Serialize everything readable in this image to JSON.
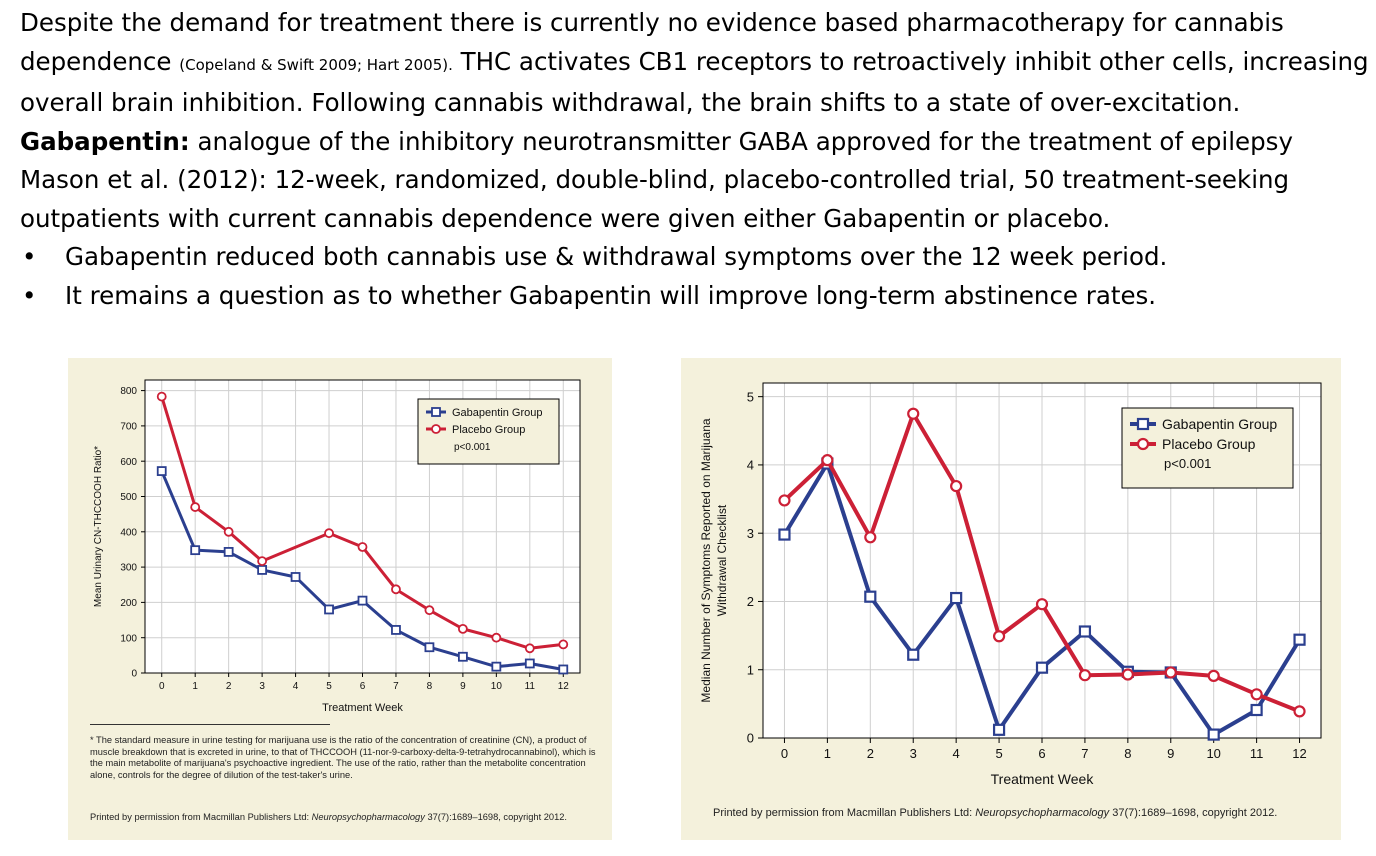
{
  "slide": {
    "para1_main": "Despite the demand for treatment there is currently no evidence based pharmacotherapy for cannabis dependence",
    "para1_cite": "(Copeland & Swift 2009; Hart 2005).",
    "para1_rest": " THC activates CB1 receptors to retroactively inhibit other cells, increasing overall brain inhibition.  Following cannabis withdrawal, the brain shifts to a state of over-excitation.",
    "gaba_label": "Gabapentin:",
    "gaba_desc": "  analogue of the inhibitory neurotransmitter GABA approved for the treatment of epilepsy",
    "mason": "Mason et al. (2012): 12-week, randomized, double-blind, placebo-controlled trial, 50 treatment-seeking outpatients with current cannabis dependence were given either Gabapentin or placebo.",
    "bullet_symbol": "•",
    "bullets": [
      "Gabapentin reduced both cannabis use & withdrawal symptoms over the 12 week period.",
      "It remains a question as to whether Gabapentin will improve long-term abstinence rates."
    ]
  },
  "colors": {
    "gabapentin": "#2b3f8f",
    "placebo": "#cc2036",
    "panel_bg": "#f4f1dc",
    "plot_bg": "#ffffff",
    "grid": "#cfcfcf"
  },
  "chart_data": [
    {
      "type": "line",
      "xlabel": "Treatment Week",
      "ylabel": "Mean Urinary CN-THCCOOH Ratio*",
      "x": [
        0,
        1,
        2,
        3,
        4,
        5,
        6,
        7,
        8,
        9,
        10,
        11,
        12
      ],
      "xticks": [
        "0",
        "1",
        "2",
        "3",
        "4",
        "5",
        "6",
        "7",
        "8",
        "9",
        "10",
        "11",
        "12"
      ],
      "yticks": [
        "0",
        "100",
        "200",
        "300",
        "400",
        "500",
        "600",
        "700",
        "800"
      ],
      "ylim": [
        0,
        830
      ],
      "grid": true,
      "legend_position": "top-right",
      "annotation": "p<0.001",
      "series": [
        {
          "name": "Gabapentin Group",
          "marker": "square",
          "values": [
            572,
            348,
            343,
            292,
            272,
            180,
            205,
            122,
            73,
            46,
            18,
            27,
            10
          ]
        },
        {
          "name": "Placebo Group",
          "marker": "circle",
          "values": [
            783,
            470,
            400,
            317,
            null,
            396,
            357,
            237,
            178,
            125,
            100,
            70,
            81
          ]
        }
      ],
      "footnote": "* The standard measure in urine testing for marijuana use is the ratio of the concentration of creatinine (CN), a product of muscle breakdown that is excreted in urine, to that of THCCOOH (11-nor-9-carboxy-delta-9-tetrahydrocannabinol), which is the main metabolite of marijuana's psychoactive ingredient. The use of the ratio, rather than the metabolite concentration alone, controls for the degree of dilution of the test-taker's urine.",
      "permission_prefix": "Printed by permission from Macmillan Publishers Ltd: ",
      "permission_journal": "Neuropsychopharmacology",
      "permission_suffix": " 37(7):1689–1698, copyright 2012."
    },
    {
      "type": "line",
      "xlabel": "Treatment Week",
      "ylabel": "Median Number of Symptoms Reported on Marijuana Withdrawal Checklist",
      "ylabel_lines": [
        "Median Number of Symptoms Reported on Marijuana",
        "Withdrawal Checklist"
      ],
      "x": [
        0,
        1,
        2,
        3,
        4,
        5,
        6,
        7,
        8,
        9,
        10,
        11,
        12
      ],
      "xticks": [
        "0",
        "1",
        "2",
        "3",
        "4",
        "5",
        "6",
        "7",
        "8",
        "9",
        "10",
        "11",
        "12"
      ],
      "yticks": [
        "0",
        "1",
        "2",
        "3",
        "4",
        "5"
      ],
      "ylim": [
        0,
        5.2
      ],
      "grid": true,
      "legend_position": "top-right",
      "annotation": "p<0.001",
      "series": [
        {
          "name": "Gabapentin Group",
          "marker": "square",
          "values": [
            2.98,
            4.02,
            2.07,
            1.22,
            2.05,
            0.12,
            1.03,
            1.56,
            0.97,
            0.96,
            0.05,
            0.41,
            1.44
          ]
        },
        {
          "name": "Placebo Group",
          "marker": "circle",
          "values": [
            3.48,
            4.07,
            2.94,
            4.75,
            3.69,
            1.49,
            1.96,
            0.92,
            0.93,
            0.96,
            0.91,
            0.64,
            0.39
          ]
        }
      ],
      "permission_prefix": "Printed by permission from Macmillan Publishers Ltd: ",
      "permission_journal": "Neuropsychopharmacology",
      "permission_suffix": " 37(7):1689–1698, copyright 2012."
    }
  ]
}
